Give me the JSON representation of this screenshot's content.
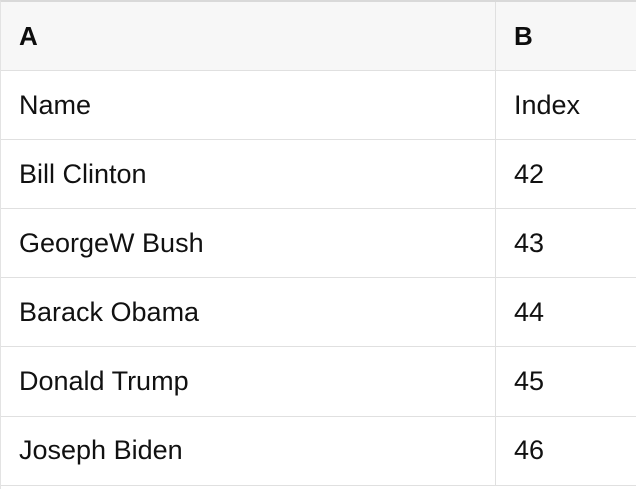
{
  "table": {
    "columns": [
      {
        "label": "A"
      },
      {
        "label": "B"
      }
    ],
    "rows": [
      {
        "a": "Name",
        "b": "Index"
      },
      {
        "a": "Bill Clinton",
        "b": "42"
      },
      {
        "a": "GeorgeW Bush",
        "b": "43"
      },
      {
        "a": "Barack Obama",
        "b": "44"
      },
      {
        "a": "Donald Trump",
        "b": "45"
      },
      {
        "a": "Joseph Biden",
        "b": "46"
      }
    ],
    "colors": {
      "header_bg": "#f7f7f7",
      "border": "#e0e0e0",
      "top_border": "#d9d9d9",
      "text": "#111111",
      "body_bg": "#ffffff"
    }
  }
}
